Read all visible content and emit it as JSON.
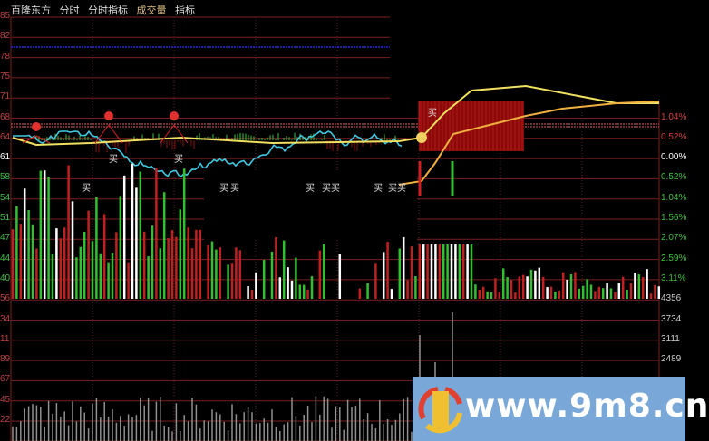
{
  "header": {
    "tabs": [
      "百隆东方",
      "分时",
      "分时指标",
      "成交量",
      "指标"
    ],
    "tab_colors": [
      "#dddddd",
      "#dddddd",
      "#dddddd",
      "#e0c080",
      "#dddddd"
    ]
  },
  "left_axis": [
    "85",
    "82",
    "78",
    "75",
    "71",
    "68",
    "64",
    "61",
    "58",
    "54",
    "51",
    "47",
    "44",
    "40",
    "56",
    "34",
    "11",
    "89",
    "67",
    "45",
    "22"
  ],
  "right_axis": [
    {
      "label": "1.04%",
      "color": "#d04040"
    },
    {
      "label": "0.52%",
      "color": "#d04040"
    },
    {
      "label": "0.00%",
      "color": "#ffffff"
    },
    {
      "label": "0.52%",
      "color": "#40c040"
    },
    {
      "label": "1.04%",
      "color": "#40c040"
    },
    {
      "label": "1.56%",
      "color": "#40c040"
    },
    {
      "label": "2.07%",
      "color": "#40c040"
    },
    {
      "label": "2.59%",
      "color": "#40c040"
    },
    {
      "label": "3.11%",
      "color": "#40c040"
    },
    {
      "label": "4356",
      "color": "#cccccc"
    },
    {
      "label": "3734",
      "color": "#cccccc"
    },
    {
      "label": "3111",
      "color": "#cccccc"
    },
    {
      "label": "2489",
      "color": "#cccccc"
    }
  ],
  "signals": {
    "buy_label": "买",
    "buy_double_label": "买买"
  },
  "colors": {
    "grid": "#7a1f1f",
    "price": "#40c8e0",
    "average": "#f0e060",
    "up": "#c02020",
    "down": "#30c030",
    "neutral": "#ffffff",
    "volume": "#909090",
    "ref_line": "#2020a0"
  },
  "chart_data": {
    "type": "line",
    "price_axis_ticks": [
      "85",
      "82",
      "78",
      "75",
      "71",
      "68",
      "64",
      "61"
    ],
    "percent_axis_ticks": [
      "1.04%",
      "0.52%",
      "0.00%",
      "0.52%",
      "1.04%",
      "1.56%",
      "2.07%",
      "2.59%",
      "3.11%"
    ],
    "volume_axis_ticks": [
      "4356",
      "3734",
      "3111",
      "2489"
    ],
    "grid": true
  },
  "watermark": {
    "text": "www.9m8.cn"
  }
}
